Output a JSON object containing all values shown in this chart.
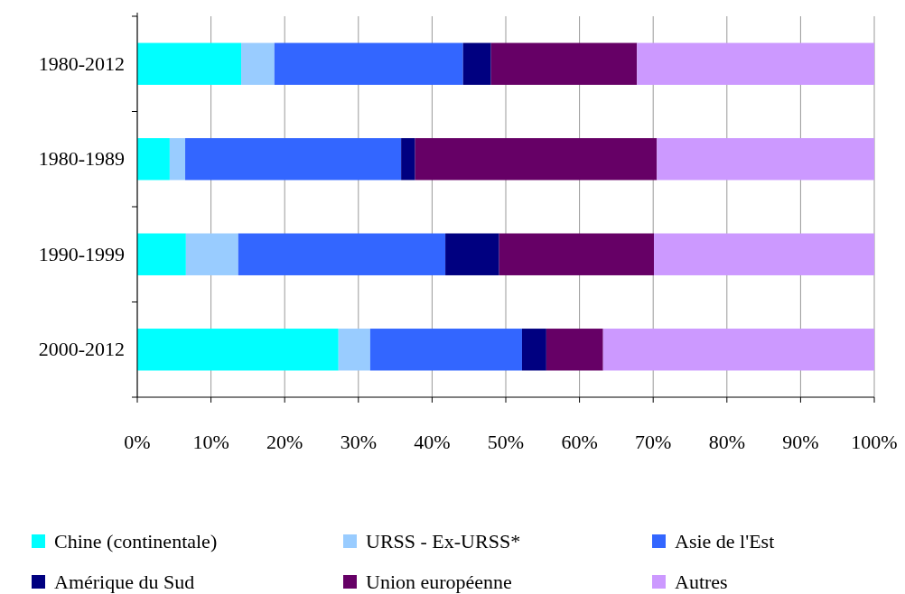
{
  "chart_data": {
    "type": "bar",
    "orientation": "horizontal",
    "stacked": true,
    "categories": [
      "1980-2012",
      "1980-1989",
      "1990-1999",
      "2000-2012"
    ],
    "series": [
      {
        "name": "Chine (continentale)",
        "color": "#00ffff",
        "values": [
          14.1,
          4.4,
          6.6,
          27.3
        ]
      },
      {
        "name": "URSS - Ex-URSS*",
        "color": "#99ccff",
        "values": [
          4.5,
          2.1,
          7.1,
          4.3
        ]
      },
      {
        "name": "Asie de l'Est",
        "color": "#3366ff",
        "values": [
          25.6,
          29.3,
          28.1,
          20.6
        ]
      },
      {
        "name": "Amérique du Sud",
        "color": "#000080",
        "values": [
          3.8,
          1.9,
          7.3,
          3.3
        ]
      },
      {
        "name": "Union européenne",
        "color": "#660066",
        "values": [
          19.8,
          32.8,
          21.0,
          7.7
        ]
      },
      {
        "name": "Autres",
        "color": "#cc99ff",
        "values": [
          32.2,
          29.5,
          29.9,
          36.8
        ]
      }
    ],
    "xlim": [
      0,
      100
    ],
    "xticks": [
      {
        "value": 0,
        "label": "0%"
      },
      {
        "value": 10,
        "label": "10%"
      },
      {
        "value": 20,
        "label": "20%"
      },
      {
        "value": 30,
        "label": "30%"
      },
      {
        "value": 40,
        "label": "40%"
      },
      {
        "value": 50,
        "label": "50%"
      },
      {
        "value": 60,
        "label": "60%"
      },
      {
        "value": 70,
        "label": "70%"
      },
      {
        "value": 80,
        "label": "80%"
      },
      {
        "value": 90,
        "label": "90%"
      },
      {
        "value": 100,
        "label": "100%"
      }
    ],
    "grid": "x",
    "legend": "bottom"
  }
}
